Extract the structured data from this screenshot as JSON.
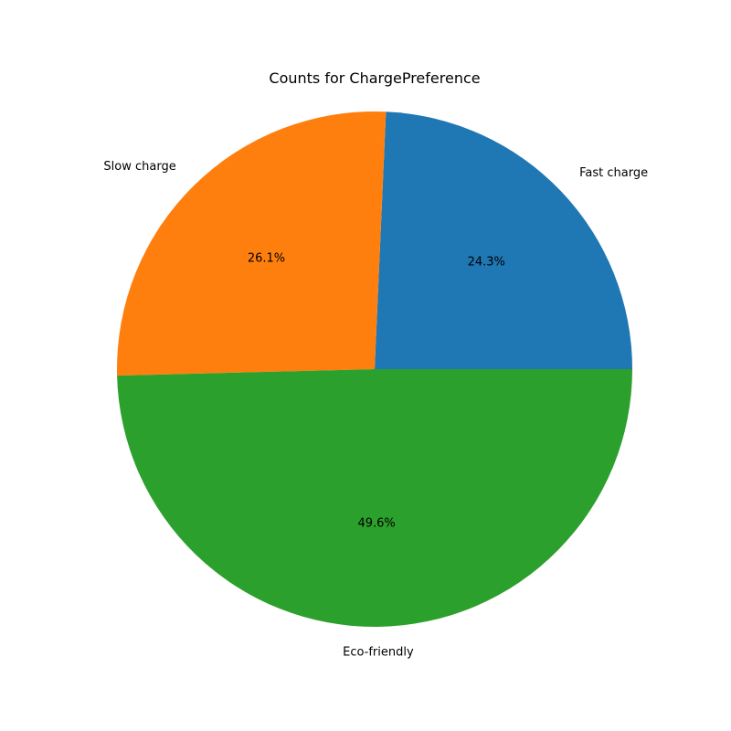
{
  "chart_data": {
    "type": "pie",
    "title": "Counts for ChargePreference",
    "categories": [
      "Fast charge",
      "Slow charge",
      "Eco-friendly"
    ],
    "values": [
      24.3,
      26.1,
      49.6
    ],
    "value_labels": [
      "24.3%",
      "26.1%",
      "49.6%"
    ],
    "colors": [
      "#1f77b4",
      "#ff7f0e",
      "#2ca02c"
    ],
    "start_angle_deg": 0,
    "direction": "counterclockwise",
    "legend": "none"
  }
}
